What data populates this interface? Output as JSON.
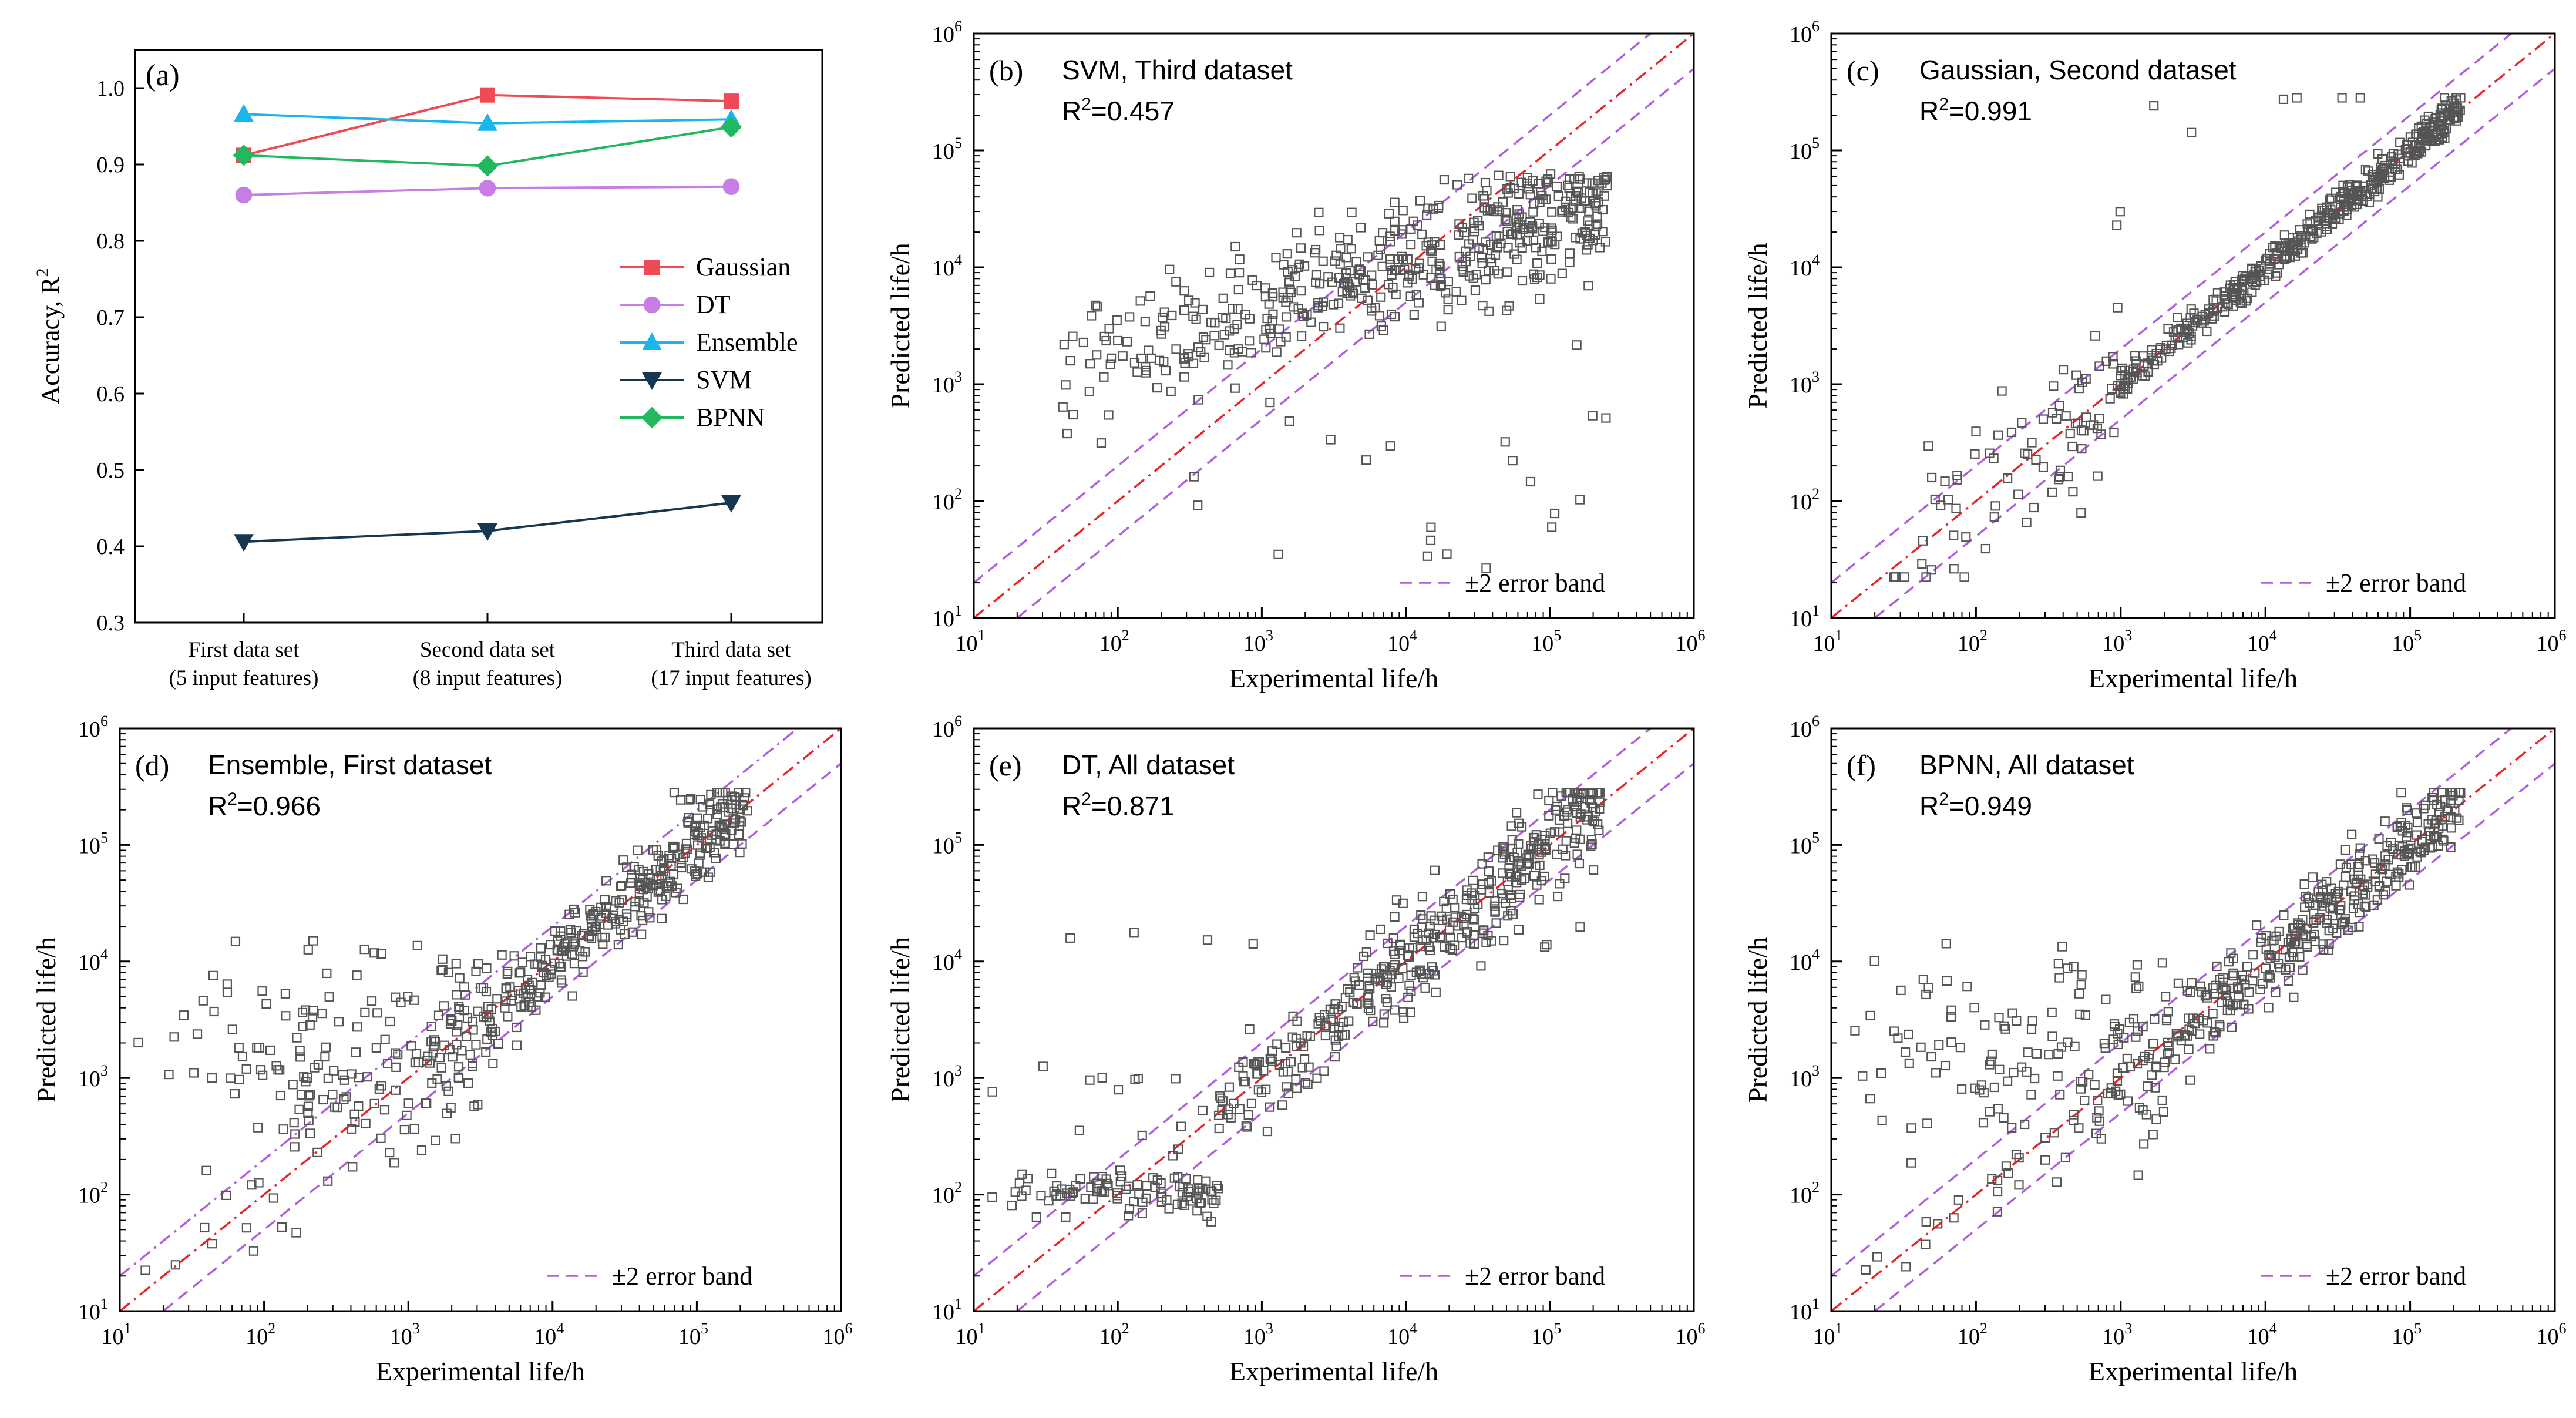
{
  "colors": {
    "axis": "#000000",
    "gaussian": "#f04a55",
    "dt": "#c77de3",
    "ensemble": "#19b6ee",
    "svm": "#173751",
    "bpnn": "#22b85e",
    "ideal_line": "#e8262a",
    "error_band": "#b060dc",
    "marker_edge": "#555555"
  },
  "chart_data": [
    {
      "panel": "(a)",
      "type": "line",
      "ylabel": "Accuracy, R²",
      "ylabel_base": "Accuracy, R",
      "ylabel_sup": "2",
      "ylim": [
        0.3,
        1.05
      ],
      "yticks": [
        "0.3",
        "0.4",
        "0.5",
        "0.6",
        "0.7",
        "0.8",
        "0.9",
        "1.0"
      ],
      "categories": [
        "First data set",
        "Second data set",
        "Third data set"
      ],
      "category_sublabels": [
        "(5 input features)",
        "(8 input features)",
        "(17 input features)"
      ],
      "legend_position": "center-right",
      "series": [
        {
          "name": "Gaussian",
          "marker": "square",
          "values": [
            0.912,
            0.991,
            0.983
          ]
        },
        {
          "name": "DT",
          "marker": "circle",
          "values": [
            0.86,
            0.869,
            0.871
          ]
        },
        {
          "name": "Ensemble",
          "marker": "triangle-up",
          "values": [
            0.966,
            0.954,
            0.959
          ]
        },
        {
          "name": "SVM",
          "marker": "triangle-down",
          "values": [
            0.406,
            0.42,
            0.457
          ]
        },
        {
          "name": "BPNN",
          "marker": "diamond",
          "values": [
            0.912,
            0.898,
            0.949
          ]
        }
      ]
    },
    {
      "panel": "(b)",
      "type": "scatter",
      "model": "SVM, Third dataset",
      "r2_label": "R²=0.457",
      "r2_prefix": "R",
      "r2_sup": "2",
      "r2_value": "=0.457",
      "r2": 0.457,
      "xlabel": "Experimental life/h",
      "ylabel": "Predicted life/h",
      "xlim": [
        10,
        1000000
      ],
      "ylim": [
        10,
        1000000
      ],
      "scale": "log",
      "legend": "±2 error band",
      "legend_position": "bottom-right"
    },
    {
      "panel": "(c)",
      "type": "scatter",
      "model": "Gaussian, Second dataset",
      "r2_label": "R²=0.991",
      "r2_prefix": "R",
      "r2_sup": "2",
      "r2_value": "=0.991",
      "r2": 0.991,
      "xlabel": "Experimental life/h",
      "ylabel": "Predicted life/h",
      "xlim": [
        10,
        1000000
      ],
      "ylim": [
        10,
        1000000
      ],
      "scale": "log",
      "legend": "±2 error band",
      "legend_position": "bottom-right"
    },
    {
      "panel": "(d)",
      "type": "scatter",
      "model": "Ensemble, First dataset",
      "r2_label": "R²=0.966",
      "r2_prefix": "R",
      "r2_sup": "2",
      "r2_value": "=0.966",
      "r2": 0.966,
      "xlabel": "Experimental life/h",
      "ylabel": "Predicted life/h",
      "xlim": [
        10,
        1000000
      ],
      "ylim": [
        10,
        1000000
      ],
      "scale": "log",
      "legend": "±2 error band",
      "legend_position": "bottom-right"
    },
    {
      "panel": "(e)",
      "type": "scatter",
      "model": "DT, All dataset",
      "r2_label": "R²=0.871",
      "r2_prefix": "R",
      "r2_sup": "2",
      "r2_value": "=0.871",
      "r2": 0.871,
      "xlabel": "Experimental life/h",
      "ylabel": "Predicted life/h",
      "xlim": [
        10,
        1000000
      ],
      "ylim": [
        10,
        1000000
      ],
      "scale": "log",
      "legend": "±2 error band",
      "legend_position": "bottom-right"
    },
    {
      "panel": "(f)",
      "type": "scatter",
      "model": "BPNN, All dataset",
      "r2_label": "R²=0.949",
      "r2_prefix": "R",
      "r2_sup": "2",
      "r2_value": "=0.949",
      "r2": 0.949,
      "xlabel": "Experimental life/h",
      "ylabel": "Predicted life/h",
      "xlim": [
        10,
        1000000
      ],
      "ylim": [
        10,
        1000000
      ],
      "scale": "log",
      "legend": "±2 error band",
      "legend_position": "bottom-right"
    }
  ]
}
